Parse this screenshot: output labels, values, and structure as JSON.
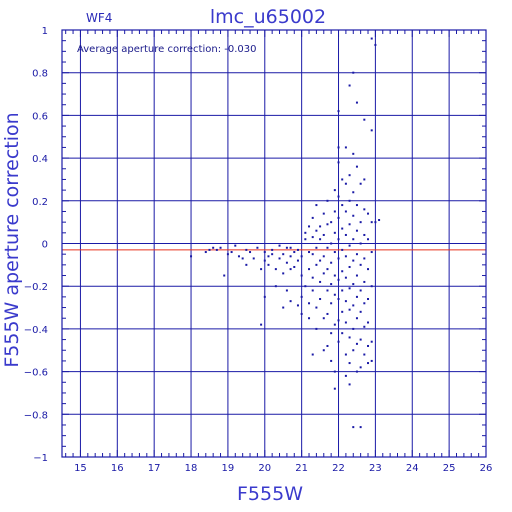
{
  "chart_data": {
    "type": "scatter",
    "title": "lmc_u65002",
    "chip_label": "WF4",
    "annotation": "Average aperture correction: -0.030",
    "xlabel": "F555W",
    "ylabel": "F555W aperture correction",
    "xlim": [
      14.5,
      26
    ],
    "ylim": [
      -1,
      1
    ],
    "x_ticks": [
      15,
      16,
      17,
      18,
      19,
      20,
      21,
      22,
      23,
      24,
      25,
      26
    ],
    "y_ticks": [
      -1,
      -0.8,
      -0.6,
      -0.4,
      -0.2,
      0,
      0.2,
      0.4,
      0.6,
      0.8,
      1
    ],
    "x_tick_labels": [
      "15",
      "16",
      "17",
      "18",
      "19",
      "20",
      "21",
      "22",
      "23",
      "24",
      "25",
      "26"
    ],
    "y_tick_labels": [
      "−1",
      "−0.8",
      "−0.6",
      "−0.4",
      "−0.2",
      "0",
      "0.2",
      "0.4",
      "0.6",
      "0.8",
      "1"
    ],
    "grid": true,
    "reference_lines": [
      {
        "y": 0,
        "color": "#1a1aa6"
      },
      {
        "y": -0.03,
        "color": "#e8321e"
      }
    ],
    "point_color": "#1a1aa6",
    "series": [
      {
        "points": [
          [
            18.0,
            -0.06
          ],
          [
            18.4,
            -0.04
          ],
          [
            18.5,
            -0.03
          ],
          [
            18.6,
            -0.02
          ],
          [
            18.7,
            -0.03
          ],
          [
            18.8,
            -0.02
          ],
          [
            18.9,
            -0.15
          ],
          [
            19.0,
            -0.05
          ],
          [
            19.1,
            -0.04
          ],
          [
            19.2,
            -0.01
          ],
          [
            19.3,
            -0.06
          ],
          [
            19.4,
            -0.07
          ],
          [
            19.5,
            -0.03
          ],
          [
            19.5,
            -0.1
          ],
          [
            19.6,
            -0.04
          ],
          [
            19.7,
            -0.07
          ],
          [
            19.8,
            -0.02
          ],
          [
            19.9,
            -0.12
          ],
          [
            20.0,
            -0.08
          ],
          [
            20.0,
            -0.04
          ],
          [
            20.1,
            -0.06
          ],
          [
            20.1,
            -0.1
          ],
          [
            20.2,
            -0.03
          ],
          [
            20.2,
            -0.05
          ],
          [
            20.3,
            -0.12
          ],
          [
            20.4,
            -0.01
          ],
          [
            20.4,
            -0.07
          ],
          [
            20.5,
            -0.05
          ],
          [
            20.5,
            -0.14
          ],
          [
            20.6,
            -0.02
          ],
          [
            20.6,
            -0.09
          ],
          [
            20.7,
            -0.06
          ],
          [
            20.7,
            -0.12
          ],
          [
            20.8,
            -0.04
          ],
          [
            20.8,
            -0.11
          ],
          [
            20.9,
            -0.03
          ],
          [
            20.9,
            -0.08
          ],
          [
            21.0,
            -0.15
          ],
          [
            21.0,
            -0.06
          ],
          [
            21.0,
            -0.25
          ],
          [
            19.9,
            -0.38
          ],
          [
            20.0,
            -0.25
          ],
          [
            20.3,
            -0.2
          ],
          [
            20.5,
            -0.3
          ],
          [
            20.6,
            -0.22
          ],
          [
            20.7,
            -0.27
          ],
          [
            20.9,
            -0.29
          ],
          [
            21.0,
            -0.33
          ],
          [
            21.1,
            -0.2
          ],
          [
            21.2,
            -0.28
          ],
          [
            21.1,
            0.05
          ],
          [
            21.1,
            0.02
          ],
          [
            21.2,
            0.08
          ],
          [
            21.2,
            -0.04
          ],
          [
            21.2,
            -0.12
          ],
          [
            21.3,
            0.12
          ],
          [
            21.3,
            0.03
          ],
          [
            21.3,
            -0.05
          ],
          [
            21.3,
            -0.16
          ],
          [
            21.3,
            -0.22
          ],
          [
            21.4,
            0.18
          ],
          [
            21.4,
            0.06
          ],
          [
            21.4,
            -0.02
          ],
          [
            21.4,
            -0.1
          ],
          [
            21.4,
            -0.3
          ],
          [
            21.4,
            -0.4
          ],
          [
            21.5,
            0.02
          ],
          [
            21.5,
            -0.08
          ],
          [
            21.5,
            -0.18
          ],
          [
            21.5,
            -0.26
          ],
          [
            21.6,
            0.14
          ],
          [
            21.6,
            0.04
          ],
          [
            21.6,
            -0.06
          ],
          [
            21.6,
            -0.14
          ],
          [
            21.6,
            -0.35
          ],
          [
            21.6,
            -0.5
          ],
          [
            21.7,
            0.2
          ],
          [
            21.7,
            0.09
          ],
          [
            21.7,
            -0.02
          ],
          [
            21.7,
            -0.12
          ],
          [
            21.7,
            -0.22
          ],
          [
            21.7,
            -0.33
          ],
          [
            21.7,
            -0.48
          ],
          [
            21.8,
            0.1
          ],
          [
            21.8,
            0.0
          ],
          [
            21.8,
            -0.09
          ],
          [
            21.8,
            -0.19
          ],
          [
            21.8,
            -0.28
          ],
          [
            21.8,
            -0.42
          ],
          [
            21.8,
            -0.55
          ],
          [
            21.9,
            0.25
          ],
          [
            21.9,
            0.15
          ],
          [
            21.9,
            0.05
          ],
          [
            21.9,
            -0.04
          ],
          [
            21.9,
            -0.15
          ],
          [
            21.9,
            -0.24
          ],
          [
            21.9,
            -0.38
          ],
          [
            21.9,
            -0.6
          ],
          [
            22.0,
            0.38
          ],
          [
            22.0,
            0.22
          ],
          [
            22.0,
            0.12
          ],
          [
            22.0,
            0.02
          ],
          [
            22.0,
            -0.07
          ],
          [
            22.0,
            -0.17
          ],
          [
            22.0,
            -0.26
          ],
          [
            22.0,
            -0.36
          ],
          [
            22.0,
            -0.46
          ],
          [
            22.0,
            0.62
          ],
          [
            22.1,
            0.3
          ],
          [
            22.1,
            0.18
          ],
          [
            22.1,
            0.07
          ],
          [
            22.1,
            -0.03
          ],
          [
            22.1,
            -0.13
          ],
          [
            22.1,
            -0.22
          ],
          [
            22.1,
            -0.32
          ],
          [
            22.1,
            -0.42
          ],
          [
            22.2,
            0.45
          ],
          [
            22.2,
            0.28
          ],
          [
            22.2,
            0.15
          ],
          [
            22.2,
            0.04
          ],
          [
            22.2,
            -0.06
          ],
          [
            22.2,
            -0.16
          ],
          [
            22.2,
            -0.27
          ],
          [
            22.2,
            -0.37
          ],
          [
            22.2,
            -0.52
          ],
          [
            22.2,
            -0.62
          ],
          [
            22.3,
            0.74
          ],
          [
            22.3,
            0.32
          ],
          [
            22.3,
            0.2
          ],
          [
            22.3,
            0.09
          ],
          [
            22.3,
            -0.01
          ],
          [
            22.3,
            -0.11
          ],
          [
            22.3,
            -0.21
          ],
          [
            22.3,
            -0.31
          ],
          [
            22.3,
            -0.44
          ],
          [
            22.3,
            -0.56
          ],
          [
            22.3,
            -0.66
          ],
          [
            22.4,
            0.8
          ],
          [
            22.4,
            0.42
          ],
          [
            22.4,
            0.24
          ],
          [
            22.4,
            0.13
          ],
          [
            22.4,
            0.02
          ],
          [
            22.4,
            -0.08
          ],
          [
            22.4,
            -0.19
          ],
          [
            22.4,
            -0.29
          ],
          [
            22.4,
            -0.4
          ],
          [
            22.4,
            -0.5
          ],
          [
            22.4,
            -0.86
          ],
          [
            22.5,
            0.66
          ],
          [
            22.5,
            0.36
          ],
          [
            22.5,
            0.18
          ],
          [
            22.5,
            0.06
          ],
          [
            22.5,
            -0.05
          ],
          [
            22.5,
            -0.15
          ],
          [
            22.5,
            -0.25
          ],
          [
            22.5,
            -0.35
          ],
          [
            22.5,
            -0.47
          ],
          [
            22.5,
            -0.6
          ],
          [
            22.6,
            0.28
          ],
          [
            22.6,
            0.1
          ],
          [
            22.6,
            0.0
          ],
          [
            22.6,
            -0.1
          ],
          [
            22.6,
            -0.22
          ],
          [
            22.6,
            -0.32
          ],
          [
            22.6,
            -0.45
          ],
          [
            22.6,
            -0.58
          ],
          [
            22.6,
            -0.86
          ],
          [
            22.7,
            0.58
          ],
          [
            22.7,
            0.3
          ],
          [
            22.7,
            0.16
          ],
          [
            22.7,
            0.04
          ],
          [
            22.7,
            -0.07
          ],
          [
            22.7,
            -0.18
          ],
          [
            22.7,
            -0.28
          ],
          [
            22.7,
            -0.39
          ],
          [
            22.7,
            -0.52
          ],
          [
            22.8,
            0.14
          ],
          [
            22.8,
            0.02
          ],
          [
            22.8,
            -0.12
          ],
          [
            22.8,
            -0.26
          ],
          [
            22.8,
            -0.37
          ],
          [
            22.8,
            -0.48
          ],
          [
            22.8,
            -0.56
          ],
          [
            22.9,
            0.96
          ],
          [
            22.9,
            0.53
          ],
          [
            22.9,
            0.1
          ],
          [
            22.9,
            -0.04
          ],
          [
            22.9,
            -0.2
          ],
          [
            22.9,
            -0.46
          ],
          [
            22.9,
            -0.55
          ],
          [
            23.0,
            0.1
          ],
          [
            23.0,
            0.93
          ],
          [
            23.1,
            0.11
          ],
          [
            21.2,
            -0.35
          ],
          [
            21.3,
            -0.52
          ],
          [
            20.7,
            -0.02
          ],
          [
            21.5,
            0.08
          ],
          [
            21.9,
            -0.68
          ],
          [
            22.0,
            0.45
          ]
        ]
      }
    ]
  }
}
